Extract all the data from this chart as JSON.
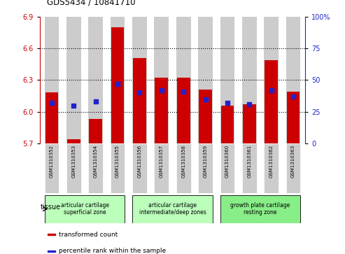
{
  "title": "GDS5434 / 10841710",
  "samples": [
    "GSM1310352",
    "GSM1310353",
    "GSM1310354",
    "GSM1310355",
    "GSM1310356",
    "GSM1310357",
    "GSM1310358",
    "GSM1310359",
    "GSM1310360",
    "GSM1310361",
    "GSM1310362",
    "GSM1310363"
  ],
  "transformed_count": [
    6.18,
    5.74,
    5.93,
    6.8,
    6.51,
    6.32,
    6.32,
    6.21,
    6.06,
    6.07,
    6.49,
    6.19
  ],
  "percentile_rank": [
    32,
    30,
    33,
    47,
    40,
    42,
    41,
    35,
    32,
    31,
    42,
    37
  ],
  "ylim_left": [
    5.7,
    6.9
  ],
  "ylim_right": [
    0,
    100
  ],
  "yticks_left": [
    5.7,
    6.0,
    6.3,
    6.6,
    6.9
  ],
  "yticks_right": [
    0,
    25,
    50,
    75,
    100
  ],
  "bar_color": "#cc0000",
  "dot_color": "#2222cc",
  "col_bg_color": "#cccccc",
  "plot_bg": "#ffffff",
  "tissue_groups": [
    {
      "label": "articular cartilage\nsuperficial zone",
      "indices": [
        0,
        1,
        2,
        3
      ],
      "color": "#bbffbb"
    },
    {
      "label": "articular cartilage\nintermediate/deep zones",
      "indices": [
        4,
        5,
        6,
        7
      ],
      "color": "#bbffbb"
    },
    {
      "label": "growth plate cartilage\nresting zone",
      "indices": [
        8,
        9,
        10,
        11
      ],
      "color": "#88ee88"
    }
  ],
  "tissue_label": "tissue",
  "legend": [
    {
      "color": "#cc0000",
      "label": "transformed count"
    },
    {
      "color": "#2222cc",
      "label": "percentile rank within the sample"
    }
  ],
  "left_axis_color": "#cc0000",
  "right_axis_color": "#2222cc",
  "grid_lines": [
    6.0,
    6.3,
    6.6
  ],
  "bar_width": 0.6
}
